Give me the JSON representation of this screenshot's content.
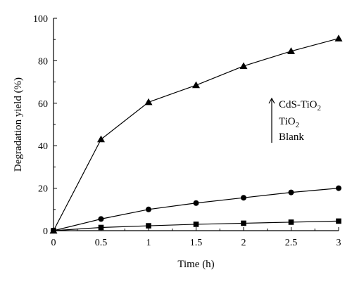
{
  "chart_data": {
    "type": "line",
    "title": "",
    "xlabel": "Time (h)",
    "ylabel": "Degradation yield (%)",
    "xlim": [
      0,
      3
    ],
    "ylim": [
      0,
      100
    ],
    "x_ticks": [
      0,
      0.5,
      1,
      1.5,
      2,
      2.5,
      3
    ],
    "x_tick_labels": [
      "0",
      "0.5",
      "1",
      "1.5",
      "2",
      "2.5",
      "3"
    ],
    "y_ticks": [
      0,
      20,
      40,
      60,
      80,
      100
    ],
    "y_tick_labels": [
      "0",
      "20",
      "40",
      "60",
      "80",
      "100"
    ],
    "grid": false,
    "legend_position": "right",
    "x": [
      0,
      0.5,
      1,
      1.5,
      2,
      2.5,
      3
    ],
    "series": [
      {
        "key": "cds-tio2",
        "marker": "triangle",
        "values": [
          0,
          43,
          60.5,
          68.5,
          77.5,
          84.5,
          90.5
        ]
      },
      {
        "key": "tio2",
        "marker": "circle",
        "values": [
          0,
          5.5,
          10,
          13,
          15.5,
          18,
          20
        ]
      },
      {
        "key": "blank",
        "marker": "square",
        "values": [
          0,
          1.5,
          2.3,
          3,
          3.5,
          4,
          4.5
        ]
      }
    ],
    "legend_entries": [
      {
        "label": "CdS-TiO",
        "subscript": "2"
      },
      {
        "label": "TiO",
        "subscript": "2"
      },
      {
        "label": "Blank",
        "subscript": ""
      }
    ],
    "colors": {
      "line": "#000000",
      "marker": "#000000"
    }
  }
}
